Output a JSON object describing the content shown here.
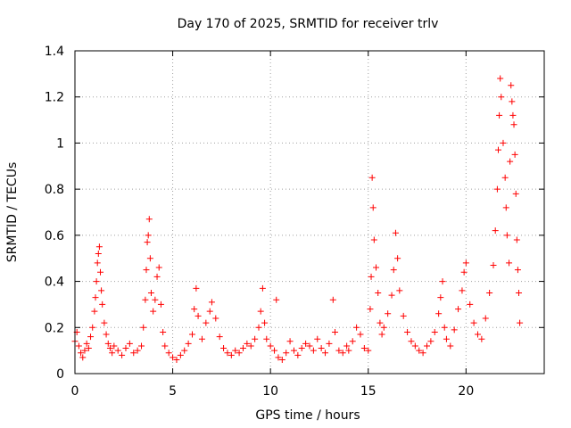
{
  "chart_data": {
    "type": "scatter",
    "title": "Day 170 of 2025, SRMTID for receiver trlv",
    "xlabel": "GPS time / hours",
    "ylabel": "SRMTID / TECUs",
    "xlim": [
      0,
      24
    ],
    "ylim": [
      0,
      1.4
    ],
    "xticks": [
      0,
      5,
      10,
      15,
      20
    ],
    "xtick_labels": [
      "0",
      "5",
      "10",
      "15",
      "20"
    ],
    "yticks": [
      0,
      0.2,
      0.4,
      0.6,
      0.8,
      1.0,
      1.2,
      1.4
    ],
    "ytick_labels": [
      "0",
      "0.2",
      "0.4",
      "0.6",
      "0.8",
      "1",
      "1.2",
      "1.4"
    ],
    "grid": true,
    "marker": "+",
    "color": "#ff0000",
    "series": [
      {
        "name": "SRMTID",
        "points": [
          [
            0.0,
            0.14
          ],
          [
            0.1,
            0.18
          ],
          [
            0.2,
            0.12
          ],
          [
            0.3,
            0.09
          ],
          [
            0.4,
            0.07
          ],
          [
            0.5,
            0.1
          ],
          [
            0.6,
            0.13
          ],
          [
            0.7,
            0.11
          ],
          [
            0.8,
            0.16
          ],
          [
            0.9,
            0.2
          ],
          [
            1.0,
            0.27
          ],
          [
            1.05,
            0.33
          ],
          [
            1.1,
            0.4
          ],
          [
            1.15,
            0.48
          ],
          [
            1.2,
            0.52
          ],
          [
            1.25,
            0.55
          ],
          [
            1.3,
            0.44
          ],
          [
            1.35,
            0.36
          ],
          [
            1.4,
            0.3
          ],
          [
            1.5,
            0.22
          ],
          [
            1.6,
            0.17
          ],
          [
            1.7,
            0.13
          ],
          [
            1.8,
            0.11
          ],
          [
            1.9,
            0.09
          ],
          [
            2.0,
            0.12
          ],
          [
            2.2,
            0.1
          ],
          [
            2.4,
            0.08
          ],
          [
            2.6,
            0.11
          ],
          [
            2.8,
            0.13
          ],
          [
            3.0,
            0.09
          ],
          [
            3.2,
            0.1
          ],
          [
            3.4,
            0.12
          ],
          [
            3.5,
            0.2
          ],
          [
            3.6,
            0.32
          ],
          [
            3.65,
            0.45
          ],
          [
            3.7,
            0.57
          ],
          [
            3.75,
            0.6
          ],
          [
            3.8,
            0.67
          ],
          [
            3.85,
            0.5
          ],
          [
            3.9,
            0.35
          ],
          [
            4.0,
            0.27
          ],
          [
            4.1,
            0.32
          ],
          [
            4.2,
            0.42
          ],
          [
            4.3,
            0.46
          ],
          [
            4.4,
            0.3
          ],
          [
            4.5,
            0.18
          ],
          [
            4.6,
            0.12
          ],
          [
            4.8,
            0.09
          ],
          [
            5.0,
            0.07
          ],
          [
            5.2,
            0.06
          ],
          [
            5.4,
            0.08
          ],
          [
            5.6,
            0.1
          ],
          [
            5.8,
            0.13
          ],
          [
            6.0,
            0.17
          ],
          [
            6.1,
            0.28
          ],
          [
            6.2,
            0.37
          ],
          [
            6.3,
            0.25
          ],
          [
            6.5,
            0.15
          ],
          [
            6.7,
            0.22
          ],
          [
            6.9,
            0.27
          ],
          [
            7.0,
            0.31
          ],
          [
            7.2,
            0.24
          ],
          [
            7.4,
            0.16
          ],
          [
            7.6,
            0.11
          ],
          [
            7.8,
            0.09
          ],
          [
            8.0,
            0.08
          ],
          [
            8.2,
            0.1
          ],
          [
            8.4,
            0.09
          ],
          [
            8.6,
            0.11
          ],
          [
            8.8,
            0.13
          ],
          [
            9.0,
            0.12
          ],
          [
            9.2,
            0.15
          ],
          [
            9.4,
            0.2
          ],
          [
            9.5,
            0.27
          ],
          [
            9.6,
            0.37
          ],
          [
            9.7,
            0.22
          ],
          [
            9.8,
            0.15
          ],
          [
            10.0,
            0.12
          ],
          [
            10.2,
            0.1
          ],
          [
            10.3,
            0.32
          ],
          [
            10.4,
            0.07
          ],
          [
            10.6,
            0.06
          ],
          [
            10.8,
            0.09
          ],
          [
            11.0,
            0.14
          ],
          [
            11.2,
            0.1
          ],
          [
            11.4,
            0.08
          ],
          [
            11.6,
            0.11
          ],
          [
            11.8,
            0.13
          ],
          [
            12.0,
            0.12
          ],
          [
            12.2,
            0.1
          ],
          [
            12.4,
            0.15
          ],
          [
            12.6,
            0.11
          ],
          [
            12.8,
            0.09
          ],
          [
            13.0,
            0.13
          ],
          [
            13.2,
            0.32
          ],
          [
            13.3,
            0.18
          ],
          [
            13.5,
            0.1
          ],
          [
            13.7,
            0.09
          ],
          [
            13.9,
            0.12
          ],
          [
            14.0,
            0.1
          ],
          [
            14.2,
            0.14
          ],
          [
            14.4,
            0.2
          ],
          [
            14.6,
            0.17
          ],
          [
            14.8,
            0.11
          ],
          [
            15.0,
            0.1
          ],
          [
            15.1,
            0.28
          ],
          [
            15.15,
            0.42
          ],
          [
            15.2,
            0.85
          ],
          [
            15.25,
            0.72
          ],
          [
            15.3,
            0.58
          ],
          [
            15.4,
            0.46
          ],
          [
            15.5,
            0.35
          ],
          [
            15.6,
            0.22
          ],
          [
            15.7,
            0.17
          ],
          [
            15.8,
            0.2
          ],
          [
            16.0,
            0.26
          ],
          [
            16.2,
            0.34
          ],
          [
            16.3,
            0.45
          ],
          [
            16.4,
            0.61
          ],
          [
            16.5,
            0.5
          ],
          [
            16.6,
            0.36
          ],
          [
            16.8,
            0.25
          ],
          [
            17.0,
            0.18
          ],
          [
            17.2,
            0.14
          ],
          [
            17.4,
            0.12
          ],
          [
            17.6,
            0.1
          ],
          [
            17.8,
            0.09
          ],
          [
            18.0,
            0.12
          ],
          [
            18.2,
            0.14
          ],
          [
            18.4,
            0.18
          ],
          [
            18.6,
            0.26
          ],
          [
            18.7,
            0.33
          ],
          [
            18.8,
            0.4
          ],
          [
            18.9,
            0.2
          ],
          [
            19.0,
            0.15
          ],
          [
            19.2,
            0.12
          ],
          [
            19.4,
            0.19
          ],
          [
            19.6,
            0.28
          ],
          [
            19.8,
            0.36
          ],
          [
            19.9,
            0.44
          ],
          [
            20.0,
            0.48
          ],
          [
            20.2,
            0.3
          ],
          [
            20.4,
            0.22
          ],
          [
            20.6,
            0.17
          ],
          [
            20.8,
            0.15
          ],
          [
            21.0,
            0.24
          ],
          [
            21.2,
            0.35
          ],
          [
            21.4,
            0.47
          ],
          [
            21.5,
            0.62
          ],
          [
            21.6,
            0.8
          ],
          [
            21.65,
            0.97
          ],
          [
            21.7,
            1.12
          ],
          [
            21.75,
            1.28
          ],
          [
            21.8,
            1.2
          ],
          [
            21.9,
            1.0
          ],
          [
            22.0,
            0.85
          ],
          [
            22.05,
            0.72
          ],
          [
            22.1,
            0.6
          ],
          [
            22.2,
            0.48
          ],
          [
            22.25,
            0.92
          ],
          [
            22.3,
            1.25
          ],
          [
            22.35,
            1.18
          ],
          [
            22.4,
            1.12
          ],
          [
            22.45,
            1.08
          ],
          [
            22.5,
            0.95
          ],
          [
            22.55,
            0.78
          ],
          [
            22.6,
            0.58
          ],
          [
            22.65,
            0.45
          ],
          [
            22.7,
            0.35
          ],
          [
            22.75,
            0.22
          ]
        ]
      }
    ]
  }
}
